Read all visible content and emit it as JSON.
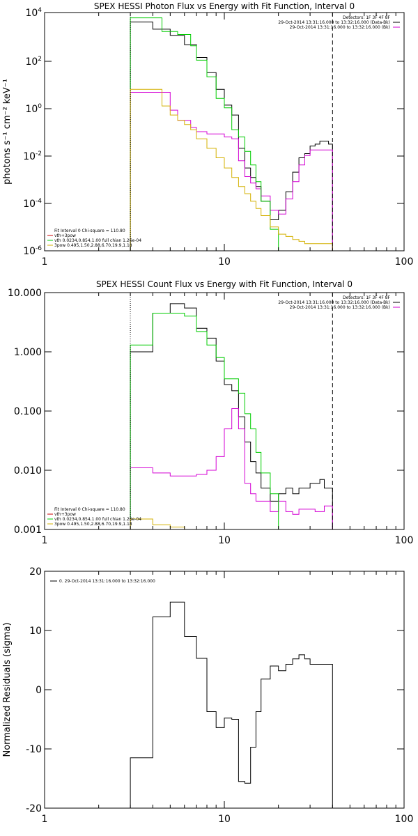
{
  "chart_data": [
    {
      "type": "line",
      "panel": "photon",
      "title": "SPEX HESSI Photon Flux vs Energy with Fit Function, Interval 0",
      "ylabel": "photons s⁻¹ cm⁻² keV⁻¹",
      "x_scale": "log",
      "y_scale": "log",
      "xlim": [
        1,
        100
      ],
      "ylim": [
        1e-06,
        10000.0
      ],
      "x_ticks": [
        "1",
        "10",
        "100"
      ],
      "y_ticks": [
        "10-6",
        "10-4",
        "10-2",
        "100",
        "102",
        "104"
      ],
      "fit_range": [
        3,
        40
      ],
      "legend_top_right": [
        {
          "text": "Detectors: 1F 3F 4F 8F",
          "color": "#000000"
        },
        {
          "text": "29-Oct-2014 13:31:16.000 to 13:32:16.000 (Data-Bk)",
          "color": "#000000"
        },
        {
          "text": "29-Oct-2014 13:31:16.000 to 13:32:16.000 (Bk)",
          "color": "#d400d4"
        }
      ],
      "legend_bottom_left": [
        {
          "text": "Fit Interval 0   Chi-square = 110.80",
          "color": "#000000"
        },
        {
          "text": "vth+3pow",
          "color": "#cc0000"
        },
        {
          "text": "vth 0.0234,0.854,1.00  full chian 1.26e-04",
          "color": "#00cc00"
        },
        {
          "text": "3pow 0.495,1.50,2.88,6.70,19.9,1.18",
          "color": "#d4b000"
        }
      ],
      "edges": [
        3,
        3.5,
        4,
        4.5,
        5,
        5.5,
        6,
        6.5,
        7,
        8,
        9,
        10,
        11,
        12,
        13,
        14,
        15,
        16,
        18,
        20,
        22,
        24,
        26,
        28,
        30,
        32,
        34,
        36,
        38,
        40
      ],
      "series": [
        {
          "name": "29-Oct-2014 13:31:16.000 to 13:32:16.000 (Data-Bk)",
          "color": "#000000",
          "values": [
            4000,
            4000,
            2000,
            2000,
            1100,
            1100,
            450,
            450,
            130,
            30,
            6,
            1.3,
            0.5,
            0.02,
            0.003,
            0.0012,
            0.0005,
            0.00012,
            2e-05,
            5e-05,
            0.0003,
            0.002,
            0.008,
            0.012,
            0.025,
            0.03,
            0.04,
            0.04,
            0.03
          ]
        },
        {
          "name": "29-Oct-2014 13:31:16.000 to 13:32:16.000 (Bk)",
          "color": "#d400d4",
          "values": [
            4.5,
            4.5,
            4.5,
            4.5,
            0.8,
            0.3,
            0.3,
            0.15,
            0.1,
            0.08,
            0.08,
            0.06,
            0.05,
            0.006,
            0.0013,
            0.0007,
            0.0004,
            0.0002,
            5e-05,
            3.5e-05,
            0.00015,
            0.0008,
            0.004,
            0.01,
            0.017,
            0.017,
            0.017,
            0.017,
            0.017
          ]
        },
        {
          "name": "vth 0.0234,0.854,1.00  full chian 1.26e-04",
          "color": "#00cc00",
          "values": [
            6000,
            6000,
            6000,
            1600,
            1600,
            1200,
            1200,
            400,
            100,
            20,
            2.5,
            1.0,
            0.12,
            0.06,
            0.015,
            0.004,
            0.0008,
            0.00012,
            8e-06,
            1e-06,
            1e-06,
            1e-06,
            1e-06,
            1e-06,
            1e-06,
            1e-06,
            1e-06,
            1e-06,
            1e-06
          ]
        },
        {
          "name": "3pow 0.495,1.50,2.88,6.70,19.9,1.18",
          "color": "#d4b000",
          "values": [
            6,
            6,
            6,
            1.2,
            0.5,
            0.3,
            0.2,
            0.12,
            0.05,
            0.02,
            0.008,
            0.003,
            0.0012,
            0.0005,
            0.00025,
            0.00012,
            6e-05,
            3e-05,
            1e-05,
            5e-06,
            4e-06,
            3e-06,
            2.5e-06,
            2e-06,
            2e-06,
            2e-06,
            2e-06,
            2e-06,
            2e-06
          ]
        }
      ]
    },
    {
      "type": "line",
      "panel": "count",
      "title": "SPEX HESSI Count Flux vs Energy with Fit Function, Interval 0",
      "ylabel": "",
      "x_scale": "log",
      "y_scale": "log",
      "xlim": [
        1,
        100
      ],
      "ylim": [
        0.001,
        10
      ],
      "x_ticks": [
        "1",
        "10",
        "100"
      ],
      "y_ticks": [
        "0.001",
        "0.010",
        "0.100",
        "1.000",
        "10.000"
      ],
      "fit_range": [
        3,
        40
      ],
      "legend_top_right": [
        {
          "text": "Detectors: 1F 3F 4F 8F",
          "color": "#000000"
        },
        {
          "text": "29-Oct-2014 13:31:16.000 to 13:32:16.000 (Data-Bk)",
          "color": "#000000"
        },
        {
          "text": "29-Oct-2014 13:31:16.000 to 13:32:16.000 (Bk)",
          "color": "#d400d4"
        }
      ],
      "legend_bottom_left": [
        {
          "text": "Fit Interval 0   Chi-square = 110.80",
          "color": "#000000"
        },
        {
          "text": "vth+3pow",
          "color": "#cc0000"
        },
        {
          "text": "vth 0.0234,0.854,1.00  full chian 1.26e-04",
          "color": "#00cc00"
        },
        {
          "text": "3pow 0.495,1.50,2.88,6.70,19.9,1.18",
          "color": "#d4b000"
        }
      ],
      "edges": [
        3,
        4,
        5,
        6,
        7,
        8,
        9,
        10,
        11,
        12,
        13,
        14,
        15,
        16,
        18,
        20,
        22,
        24,
        26,
        28,
        30,
        32,
        34,
        36,
        38,
        40
      ],
      "series": [
        {
          "name": "29-Oct-2014 13:31:16.000 to 13:32:16.000 (Data-Bk)",
          "color": "#000000",
          "values": [
            1.0,
            4.5,
            6.5,
            5.5,
            2.5,
            1.7,
            0.7,
            0.28,
            0.22,
            0.08,
            0.03,
            0.014,
            0.009,
            0.005,
            0.003,
            0.004,
            0.005,
            0.004,
            0.005,
            0.005,
            0.006,
            0.006,
            0.007,
            0.005,
            0.005
          ]
        },
        {
          "name": "29-Oct-2014 13:31:16.000 to 13:32:16.000 (Bk)",
          "color": "#d400d4",
          "values": [
            0.011,
            0.009,
            0.008,
            0.008,
            0.0085,
            0.01,
            0.017,
            0.05,
            0.11,
            0.05,
            0.006,
            0.004,
            0.003,
            0.003,
            0.002,
            0.003,
            0.002,
            0.0018,
            0.0022,
            0.0022,
            0.0022,
            0.002,
            0.002,
            0.0025,
            0.0025
          ]
        },
        {
          "name": "vth 0.0234,0.854,1.00  full chian 1.26e-04",
          "color": "#00cc00",
          "values": [
            1.3,
            4.5,
            4.5,
            4.0,
            2.2,
            1.3,
            0.8,
            0.35,
            0.35,
            0.2,
            0.09,
            0.05,
            0.02,
            0.009,
            0.004,
            0.001,
            0.0009,
            0.0009,
            0.0009,
            0.0009,
            0.0009,
            0.0009,
            0.0009,
            0.0009,
            0.0009
          ]
        },
        {
          "name": "3pow 0.495,1.50,2.88,6.70,19.9,1.18",
          "color": "#d4b000",
          "values": [
            0.0015,
            0.0012,
            0.0011,
            0.0009,
            0.0009,
            0.0009,
            0.0009,
            0.0009,
            0.0009,
            0.0009,
            0.0009,
            0.0009,
            0.0009,
            0.0009,
            0.0009,
            0.0009,
            0.0009,
            0.0009,
            0.0009,
            0.0009,
            0.0009,
            0.0009,
            0.0009,
            0.0009,
            0.0009
          ]
        }
      ]
    },
    {
      "type": "line",
      "panel": "residuals",
      "title": "",
      "ylabel": "Normalized Residuals (sigma)",
      "x_scale": "log",
      "y_scale": "linear",
      "xlim": [
        1,
        100
      ],
      "ylim": [
        -20,
        20
      ],
      "x_ticks": [
        "1",
        "10",
        "100"
      ],
      "y_ticks": [
        "-20",
        "-10",
        "0",
        "10",
        "20"
      ],
      "legend": [
        {
          "text": "0. 29-Oct-2014 13:31:16.000 to 13:32:16.000",
          "color": "#000000"
        }
      ],
      "edges": [
        3,
        4,
        5,
        6,
        7,
        8,
        9,
        10,
        11,
        12,
        13,
        14,
        15,
        16,
        18,
        20,
        22,
        24,
        26,
        28,
        30,
        32,
        34,
        36,
        38,
        40
      ],
      "series": [
        {
          "name": "0. 29-Oct-2014 13:31:16.000 to 13:32:16.000",
          "color": "#000000",
          "values": [
            -11.5,
            12.3,
            14.8,
            9.0,
            5.3,
            -3.7,
            -6.4,
            -4.8,
            -5.0,
            -15.5,
            -15.8,
            -9.7,
            -3.7,
            1.8,
            4.0,
            3.2,
            4.3,
            5.2,
            5.9,
            5.2,
            4.3,
            4.3,
            4.3,
            4.3,
            4.3
          ]
        }
      ]
    }
  ]
}
